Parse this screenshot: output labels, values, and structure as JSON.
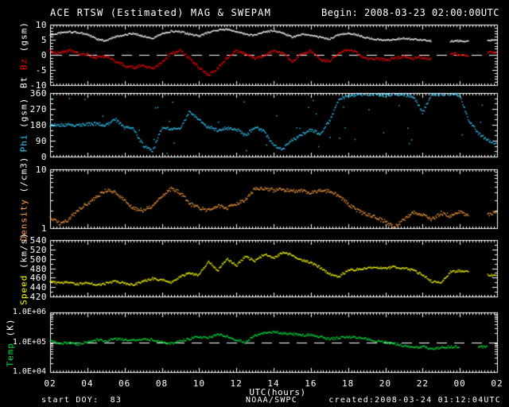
{
  "header": {
    "title": "ACE RTSW (Estimated) MAG & SWEPAM",
    "begin": "Begin: 2008-03-23 02:00:00UTC"
  },
  "footer": {
    "utc_label": "UTC(hours)",
    "start_doy": "start DOY:  83",
    "agency": "NOAA/SWPC",
    "created": "created:2008-03-24 01:12:04UTC"
  },
  "axis": {
    "x_tick_labels": [
      "02",
      "04",
      "06",
      "08",
      "10",
      "12",
      "14",
      "16",
      "18",
      "20",
      "22",
      "00",
      "02"
    ],
    "x_start_hour": 2,
    "x_end_hour": 26,
    "x_major_step_hours": 2
  },
  "colors": {
    "background": "#000000",
    "frame": "#ffffff",
    "bt": "#ffffff",
    "bz": "#ff0000",
    "phi": "#33ccff",
    "density": "#ffa040",
    "speed": "#ffff00",
    "temp": "#00e040",
    "dashed_line": "#ffffff"
  },
  "chart_data": {
    "type": "scatter",
    "title": "ACE RTSW (Estimated) MAG & SWEPAM",
    "xlabel": "UTC(hours)",
    "x": {
      "start": 2,
      "step": 0.5,
      "count": 49,
      "unit": "hours UTC"
    },
    "grid": false,
    "panels": [
      {
        "id": "mag",
        "ylabel_parts": [
          {
            "text": "Bt",
            "color": "#ffffff"
          },
          {
            "text": "Bz",
            "color": "#ff0000"
          },
          {
            "text": "(gsm)",
            "color": "#ffffff"
          }
        ],
        "scale": "linear",
        "ylim": [
          -10,
          10
        ],
        "dashed_at": 0,
        "yticks": [
          {
            "v": 10,
            "label": "10"
          },
          {
            "v": 5,
            "label": "5"
          },
          {
            "v": 0,
            "label": "0"
          },
          {
            "v": -5,
            "label": "-5"
          },
          {
            "v": -10,
            "label": "-10"
          }
        ],
        "series": [
          {
            "name": "Bt",
            "color": "#ffffff",
            "values": [
              6.5,
              7.2,
              7.6,
              7.4,
              6.8,
              5.2,
              4.6,
              6.0,
              6.6,
              7.0,
              6.2,
              5.4,
              7.0,
              7.8,
              7.6,
              6.8,
              6.2,
              7.4,
              8.2,
              8.4,
              7.8,
              6.8,
              6.4,
              7.6,
              8.0,
              7.2,
              5.8,
              6.8,
              6.4,
              5.8,
              5.2,
              6.6,
              7.2,
              6.6,
              5.6,
              5.2,
              4.8,
              5.2,
              5.4,
              5.2,
              5.0,
              4.6,
              null,
              4.4,
              4.6,
              4.4,
              null,
              4.6,
              5.0
            ]
          },
          {
            "name": "Bz",
            "color": "#ff0000",
            "values": [
              1.0,
              0.5,
              1.5,
              0.5,
              0.0,
              -0.8,
              -0.5,
              -2.0,
              -3.6,
              -4.2,
              -3.4,
              -4.6,
              -2.8,
              0.6,
              1.4,
              -1.2,
              -4.0,
              -6.8,
              -4.6,
              -1.0,
              1.2,
              0.4,
              -1.2,
              -0.4,
              1.4,
              0.6,
              -2.2,
              0.4,
              1.2,
              -1.6,
              -2.2,
              0.8,
              1.6,
              0.6,
              -1.4,
              -1.2,
              -1.6,
              -1.2,
              -0.6,
              -1.2,
              -0.8,
              -1.4,
              null,
              0.4,
              0.2,
              -0.4,
              null,
              0.6,
              1.2
            ]
          }
        ]
      },
      {
        "id": "phi",
        "ylabel_parts": [
          {
            "text": "Phi",
            "color": "#33ccff"
          },
          {
            "text": "(gsm)",
            "color": "#ffffff"
          }
        ],
        "scale": "linear",
        "ylim": [
          0,
          360
        ],
        "yticks": [
          {
            "v": 360,
            "label": "360"
          },
          {
            "v": 270,
            "label": "270"
          },
          {
            "v": 180,
            "label": "180"
          },
          {
            "v": 90,
            "label": "90"
          },
          {
            "v": 0,
            "label": "0"
          }
        ],
        "series": [
          {
            "name": "Phi",
            "color": "#33ccff",
            "values": [
              178,
              178,
              181,
              176,
              183,
              186,
              178,
              212,
              165,
              155,
              62,
              30,
              160,
              158,
              163,
              255,
              205,
              168,
              150,
              161,
              155,
              118,
              166,
              140,
              60,
              42,
              92,
              122,
              150,
              130,
              200,
              322,
              345,
              350,
              355,
              350,
              346,
              352,
              350,
              340,
              250,
              345,
              352,
              356,
              346,
              200,
              130,
              92,
              75
            ]
          }
        ]
      },
      {
        "id": "density",
        "ylabel_parts": [
          {
            "text": "Density",
            "color": "#ffa040"
          },
          {
            "text": "(/cm3)",
            "color": "#ffffff"
          }
        ],
        "scale": "log",
        "ylim": [
          1,
          10
        ],
        "yticks": [
          {
            "v": 10,
            "label": "10"
          },
          {
            "v": 1,
            "label": "1"
          }
        ],
        "series": [
          {
            "name": "Density",
            "color": "#ffa040",
            "values": [
              1.5,
              1.2,
              1.4,
              2.0,
              2.6,
              3.4,
              4.4,
              4.0,
              3.0,
              2.2,
              2.0,
              2.4,
              3.6,
              4.6,
              4.0,
              2.6,
              2.2,
              2.0,
              2.4,
              2.2,
              2.6,
              3.0,
              4.6,
              4.8,
              4.4,
              4.6,
              4.2,
              4.4,
              4.0,
              4.4,
              4.2,
              3.6,
              2.6,
              2.0,
              1.7,
              1.5,
              1.3,
              1.05,
              1.4,
              1.9,
              1.7,
              1.4,
              1.8,
              1.6,
              1.9,
              1.6,
              null,
              1.7,
              1.9
            ]
          }
        ]
      },
      {
        "id": "speed",
        "ylabel_parts": [
          {
            "text": "Speed",
            "color": "#ffff00"
          },
          {
            "text": "(km/s)",
            "color": "#ffffff"
          }
        ],
        "scale": "linear",
        "ylim": [
          420,
          540
        ],
        "yticks": [
          {
            "v": 540,
            "label": "540"
          },
          {
            "v": 520,
            "label": "520"
          },
          {
            "v": 500,
            "label": "500"
          },
          {
            "v": 480,
            "label": "480"
          },
          {
            "v": 460,
            "label": "460"
          },
          {
            "v": 440,
            "label": "440"
          },
          {
            "v": 420,
            "label": "420"
          }
        ],
        "series": [
          {
            "name": "Speed",
            "color": "#ffff00",
            "values": [
              452,
              448,
              450,
              446,
              450,
              444,
              448,
              452,
              448,
              445,
              452,
              458,
              455,
              450,
              462,
              470,
              465,
              495,
              475,
              500,
              485,
              505,
              495,
              510,
              500,
              515,
              508,
              498,
              492,
              482,
              468,
              462,
              476,
              478,
              480,
              482,
              480,
              483,
              480,
              476,
              466,
              452,
              450,
              472,
              475,
              472,
              null,
              466,
              464
            ]
          }
        ]
      },
      {
        "id": "temp",
        "ylabel_parts": [
          {
            "text": "Temp",
            "color": "#00e040"
          },
          {
            "text": "(K)",
            "color": "#ffffff"
          }
        ],
        "scale": "log",
        "ylim": [
          10000,
          1000000
        ],
        "dashed_at": 100000,
        "yticks": [
          {
            "v": 1000000,
            "label": "1.0E+06"
          },
          {
            "v": 100000,
            "label": "1.0E+05"
          },
          {
            "v": 10000,
            "label": "1.0E+04"
          }
        ],
        "series": [
          {
            "name": "Temp",
            "color": "#00e040",
            "values": [
              110000,
              90000,
              95000,
              85000,
              100000,
              120000,
              110000,
              130000,
              120000,
              115000,
              130000,
              120000,
              100000,
              90000,
              110000,
              130000,
              150000,
              140000,
              180000,
              160000,
              120000,
              100000,
              170000,
              200000,
              220000,
              200000,
              190000,
              170000,
              180000,
              150000,
              130000,
              140000,
              150000,
              145000,
              130000,
              110000,
              100000,
              90000,
              75000,
              65000,
              70000,
              60000,
              65000,
              70000,
              70000,
              null,
              72000,
              68000,
              null
            ]
          }
        ]
      }
    ]
  }
}
